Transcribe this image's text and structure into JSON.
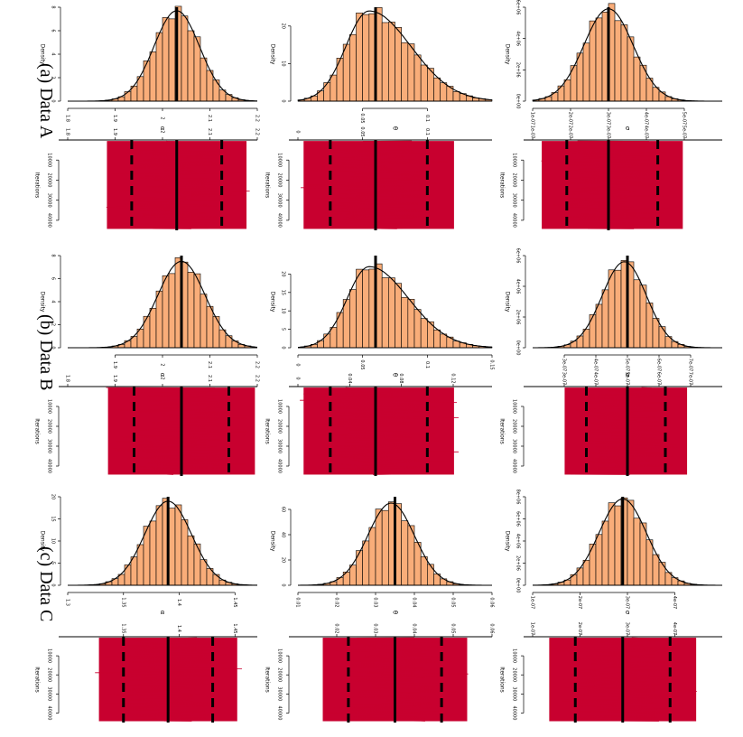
{
  "row_labels": [
    "(a) Data A",
    "(b) Data B",
    "(c) Data C"
  ],
  "chart_data": [
    {
      "type": "bar",
      "panel": "histogram",
      "dataset": "Data A",
      "parameter": "α",
      "title": "",
      "xlabel": "α",
      "ylabel": "Density",
      "xlim": [
        1.8,
        2.2
      ],
      "ylim": [
        0,
        8
      ],
      "xticks": [
        1.8,
        1.9,
        2.0,
        2.1,
        2.2
      ],
      "yticks": [
        0,
        2,
        4,
        6,
        8
      ],
      "mean": 2.03,
      "mean_direction": "x",
      "density": {
        "mean": 2.03,
        "sd": 0.048,
        "peak": 7.7
      }
    },
    {
      "type": "bar",
      "panel": "histogram",
      "dataset": "Data A",
      "parameter": "θ",
      "title": "",
      "xlabel": "θ",
      "ylabel": "Density",
      "xlim": [
        0,
        0.15
      ],
      "ylim": [
        0,
        25
      ],
      "xticks": [
        0.05,
        0.1
      ],
      "yticks": [
        0,
        10,
        20
      ],
      "mean": 0.06,
      "mean_direction": "x",
      "density": {
        "mean": 0.055,
        "sd": 0.018,
        "skew": true,
        "peak": 24
      }
    },
    {
      "type": "bar",
      "panel": "histogram",
      "dataset": "Data A",
      "parameter": "σ",
      "title": "",
      "xlabel": "σ",
      "ylabel": "Density",
      "xlim": [
        1e-07,
        6e-07
      ],
      "ylim": [
        0,
        6000000.0
      ],
      "xticks": [
        1e-07,
        2e-07,
        3e-07,
        4e-07,
        5e-07
      ],
      "ytick_labels": [
        "0e+00",
        "2e+06",
        "4e+06",
        "6e+06"
      ],
      "yticks": [
        0,
        2000000.0,
        4000000.0,
        6000000.0
      ],
      "mean": 3e-07,
      "mean_direction": "x",
      "density": {
        "mean": 3e-07,
        "sd": 6.5e-08,
        "peak": 5900000.0
      }
    },
    {
      "type": "line",
      "panel": "trace",
      "dataset": "Data A",
      "parameter": "α",
      "xlabel": "Iterations",
      "xlim": [
        0,
        45000
      ],
      "xticks": [
        10000,
        20000,
        30000,
        40000
      ],
      "ylim": [
        1.8,
        2.2
      ],
      "yticks": [
        1.8,
        1.9,
        2.0,
        2.1,
        2.2
      ],
      "mean": 2.03,
      "interval_95": [
        1.935,
        2.125
      ]
    },
    {
      "type": "line",
      "panel": "trace",
      "dataset": "Data A",
      "parameter": "θ",
      "xlabel": "Iterations",
      "xlim": [
        0,
        45000
      ],
      "xticks": [
        10000,
        20000,
        30000,
        40000
      ],
      "ylim": [
        0,
        0.15
      ],
      "yticks": [
        0.0,
        0.05,
        0.1
      ],
      "mean": 0.06,
      "interval_95": [
        0.025,
        0.1
      ]
    },
    {
      "type": "line",
      "panel": "trace",
      "dataset": "Data A",
      "parameter": "σ",
      "xlabel": "Iterations",
      "xlim": [
        0,
        45000
      ],
      "xticks": [
        10000,
        20000,
        30000,
        40000
      ],
      "ylim": [
        1e-07,
        6e-07
      ],
      "yticks": [
        1e-07,
        2e-07,
        3e-07,
        4e-07,
        5e-07
      ],
      "mean": 3e-07,
      "interval_95": [
        1.9e-07,
        4.3e-07
      ]
    },
    {
      "type": "bar",
      "panel": "histogram",
      "dataset": "Data B",
      "parameter": "α",
      "title": "",
      "xlabel": "α",
      "ylabel": "Density",
      "xlim": [
        1.8,
        2.2
      ],
      "ylim": [
        0,
        8
      ],
      "xticks": [
        1.9,
        2.0,
        2.1,
        2.2
      ],
      "yticks": [
        0,
        2,
        4,
        6,
        8
      ],
      "mean": 2.04,
      "mean_direction": "x",
      "density": {
        "mean": 2.04,
        "sd": 0.05,
        "peak": 7.5
      }
    },
    {
      "type": "bar",
      "panel": "histogram",
      "dataset": "Data B",
      "parameter": "θ",
      "title": "",
      "xlabel": "θ",
      "ylabel": "Density",
      "xlim": [
        0,
        0.15
      ],
      "ylim": [
        0,
        25
      ],
      "xticks": [
        0.0,
        0.05,
        0.1,
        0.15
      ],
      "yticks": [
        0,
        5,
        10,
        15,
        20
      ],
      "mean": 0.06,
      "mean_direction": "x",
      "density": {
        "mean": 0.055,
        "sd": 0.017,
        "skew": true,
        "peak": 22
      }
    },
    {
      "type": "bar",
      "panel": "histogram",
      "dataset": "Data B",
      "parameter": "σ",
      "title": "",
      "xlabel": "σ",
      "ylabel": "Density",
      "xlim": [
        2e-07,
        8e-07
      ],
      "ylim": [
        0,
        6000000.0
      ],
      "xticks": [
        3e-07,
        4e-07,
        5e-07,
        6e-07,
        7e-07
      ],
      "ytick_labels": [
        "0e+00",
        "2e+06",
        "4e+06",
        "6e+06"
      ],
      "yticks": [
        0,
        2000000.0,
        4000000.0,
        6000000.0
      ],
      "mean": 5e-07,
      "mean_direction": "x",
      "density": {
        "mean": 4.9e-07,
        "sd": 7e-08,
        "peak": 5600000.0
      }
    },
    {
      "type": "line",
      "panel": "trace",
      "dataset": "Data B",
      "parameter": "α",
      "xlabel": "Iterations",
      "xlim": [
        0,
        45000
      ],
      "xticks": [
        10000,
        20000,
        30000,
        40000
      ],
      "ylim": [
        1.8,
        2.2
      ],
      "yticks": [
        1.8,
        1.9,
        2.0,
        2.1,
        2.2
      ],
      "mean": 2.04,
      "interval_95": [
        1.94,
        2.14
      ]
    },
    {
      "type": "line",
      "panel": "trace",
      "dataset": "Data B",
      "parameter": "θ",
      "xlabel": "Iterations",
      "xlim": [
        0,
        45000
      ],
      "xticks": [
        10000,
        20000,
        30000,
        40000
      ],
      "ylim": [
        0,
        0.15
      ],
      "yticks": [
        0.0,
        0.04,
        0.08,
        0.12
      ],
      "mean": 0.06,
      "interval_95": [
        0.025,
        0.1
      ]
    },
    {
      "type": "line",
      "panel": "trace",
      "dataset": "Data B",
      "parameter": "σ",
      "xlabel": "Iterations",
      "xlim": [
        0,
        45000
      ],
      "xticks": [
        10000,
        20000,
        30000,
        40000
      ],
      "ylim": [
        2e-07,
        8e-07
      ],
      "yticks": [
        3e-07,
        4e-07,
        5e-07,
        6e-07,
        7e-07
      ],
      "mean": 5e-07,
      "interval_95": [
        3.7e-07,
        6.2e-07
      ]
    },
    {
      "type": "bar",
      "panel": "histogram",
      "dataset": "Data C",
      "parameter": "α",
      "title": "",
      "xlabel": "α",
      "ylabel": "Density",
      "xlim": [
        1.3,
        1.47
      ],
      "ylim": [
        0,
        20
      ],
      "xticks": [
        1.3,
        1.35,
        1.4,
        1.45
      ],
      "yticks": [
        0,
        5,
        10,
        15,
        20
      ],
      "mean": 1.39,
      "mean_direction": "x",
      "density": {
        "mean": 1.39,
        "sd": 0.021,
        "peak": 19
      }
    },
    {
      "type": "bar",
      "panel": "histogram",
      "dataset": "Data C",
      "parameter": "θ",
      "title": "",
      "xlabel": "θ",
      "ylabel": "Density",
      "xlim": [
        0.01,
        0.06
      ],
      "ylim": [
        0,
        70
      ],
      "xticks": [
        0.01,
        0.02,
        0.03,
        0.04,
        0.05,
        0.06
      ],
      "yticks": [
        0,
        20,
        40,
        60
      ],
      "mean": 0.035,
      "mean_direction": "x",
      "density": {
        "mean": 0.034,
        "sd": 0.006,
        "peak": 65
      }
    },
    {
      "type": "bar",
      "panel": "histogram",
      "dataset": "Data C",
      "parameter": "σ",
      "title": "",
      "xlabel": "σ",
      "ylabel": "Density",
      "xlim": [
        1e-07,
        5e-07
      ],
      "ylim": [
        0,
        8000000.0
      ],
      "xticks": [
        1e-07,
        2e-07,
        3e-07,
        4e-07
      ],
      "ytick_labels": [
        "0e+00",
        "2e+06",
        "4e+06",
        "6e+06",
        "8e+06"
      ],
      "yticks": [
        0,
        2000000.0,
        4000000.0,
        6000000.0,
        8000000.0
      ],
      "mean": 2.9e-07,
      "mean_direction": "x",
      "density": {
        "mean": 2.9e-07,
        "sd": 5e-08,
        "peak": 7800000.0
      }
    },
    {
      "type": "line",
      "panel": "trace",
      "dataset": "Data C",
      "parameter": "α",
      "xlabel": "Iterations",
      "xlim": [
        0,
        45000
      ],
      "xticks": [
        10000,
        20000,
        30000,
        40000
      ],
      "ylim": [
        1.3,
        1.47
      ],
      "yticks": [
        1.35,
        1.4,
        1.45
      ],
      "mean": 1.39,
      "interval_95": [
        1.35,
        1.43
      ]
    },
    {
      "type": "line",
      "panel": "trace",
      "dataset": "Data C",
      "parameter": "θ",
      "xlabel": "Iterations",
      "xlim": [
        0,
        45000
      ],
      "xticks": [
        10000,
        20000,
        30000,
        40000
      ],
      "ylim": [
        0.01,
        0.06
      ],
      "yticks": [
        0.02,
        0.03,
        0.04,
        0.05,
        0.06
      ],
      "mean": 0.035,
      "interval_95": [
        0.023,
        0.047
      ]
    },
    {
      "type": "line",
      "panel": "trace",
      "dataset": "Data C",
      "parameter": "σ",
      "xlabel": "Iterations",
      "xlim": [
        0,
        45000
      ],
      "xticks": [
        10000,
        20000,
        30000,
        40000
      ],
      "ylim": [
        1e-07,
        5e-07
      ],
      "yticks": [
        1e-07,
        2e-07,
        3e-07,
        4e-07
      ],
      "mean": 2.9e-07,
      "interval_95": [
        1.9e-07,
        3.9e-07
      ]
    }
  ],
  "colors": {
    "hist_fill": "#f9ad79",
    "trace": "#c8002f",
    "line": "#000000",
    "axis": "#000000",
    "text": "#000000"
  }
}
